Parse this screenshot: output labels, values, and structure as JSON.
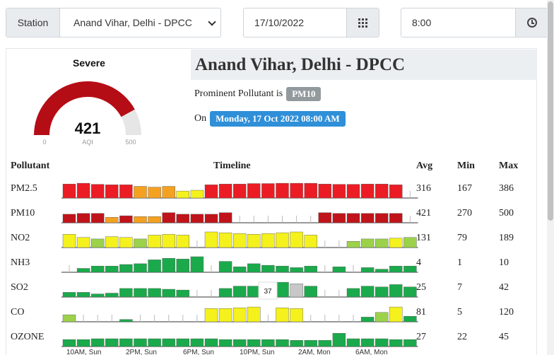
{
  "controls": {
    "station_label": "Station",
    "station_value": "Anand Vihar, Delhi - DPCC",
    "date_value": "17/10/2022",
    "time_value": "8:00"
  },
  "gauge": {
    "severity": "Severe",
    "aqi_value": "421",
    "aqi_label": "AQI",
    "min_label": "0",
    "max_label": "500",
    "aqi_number": 421,
    "aqi_max": 500,
    "color_fill": "#b50d16",
    "color_track": "#e6e6e6"
  },
  "header": {
    "title": "Anand Vihar, Delhi - DPCC",
    "prominent_text": "Prominent Pollutant is",
    "prominent_value": "PM10",
    "on_text": "On",
    "datetime": "Monday, 17 Oct 2022 08:00 AM"
  },
  "table": {
    "headers": {
      "pollutant": "Pollutant",
      "timeline": "Timeline",
      "avg": "Avg",
      "min": "Min",
      "max": "Max"
    },
    "tooltip_value": "37",
    "x_labels": [
      "10AM, Sun",
      "2PM, Sun",
      "6PM, Sun",
      "10PM, Sun",
      "2AM, Mon",
      "6AM, Mon"
    ],
    "rows": [
      {
        "name": "PM2.5",
        "avg": "316",
        "min": "167",
        "max": "386",
        "bars": [
          0.9,
          0.95,
          0.88,
          0.85,
          0.85,
          0.75,
          0.7,
          0.75,
          0.45,
          0.5,
          0.85,
          0.9,
          0.9,
          0.93,
          0.93,
          0.95,
          0.95,
          0.95,
          0.9,
          0.88,
          0.88,
          0.9,
          0.9,
          0.85,
          0.0
        ],
        "colors": [
          "r",
          "r",
          "r",
          "r",
          "r",
          "o",
          "o",
          "o",
          "y",
          "y",
          "r",
          "r",
          "r",
          "r",
          "r",
          "r",
          "r",
          "r",
          "r",
          "r",
          "r",
          "r",
          "r",
          "r",
          "n"
        ]
      },
      {
        "name": "PM10",
        "avg": "421",
        "min": "270",
        "max": "500",
        "bars": [
          0.55,
          0.6,
          0.6,
          0.35,
          0.45,
          0.4,
          0.4,
          0.65,
          0.55,
          0.55,
          0.55,
          0.65,
          0.0,
          0.0,
          0.0,
          0.0,
          0.0,
          0.0,
          0.65,
          0.6,
          0.6,
          0.6,
          0.6,
          0.6,
          0.0
        ],
        "colors": [
          "d",
          "d",
          "d",
          "o",
          "d",
          "o",
          "o",
          "d",
          "d",
          "d",
          "d",
          "d",
          "n",
          "n",
          "n",
          "n",
          "n",
          "n",
          "d",
          "d",
          "d",
          "d",
          "d",
          "d",
          "n"
        ]
      },
      {
        "name": "NO2",
        "avg": "131",
        "min": "79",
        "max": "189",
        "bars": [
          0.85,
          0.65,
          0.55,
          0.7,
          0.65,
          0.55,
          0.8,
          0.85,
          0.8,
          0.0,
          1.0,
          0.95,
          0.9,
          0.85,
          0.9,
          0.95,
          1.0,
          0.8,
          0.0,
          0.0,
          0.4,
          0.55,
          0.55,
          0.6,
          0.65
        ],
        "colors": [
          "y",
          "y",
          "l",
          "y",
          "y",
          "l",
          "y",
          "y",
          "y",
          "n",
          "y",
          "y",
          "y",
          "y",
          "y",
          "y",
          "y",
          "y",
          "n",
          "n",
          "l",
          "l",
          "l",
          "y",
          "l"
        ]
      },
      {
        "name": "NH3",
        "avg": "4",
        "min": "1",
        "max": "10",
        "bars": [
          0.0,
          0.25,
          0.4,
          0.4,
          0.5,
          0.55,
          0.8,
          0.9,
          0.85,
          1.0,
          0.0,
          0.7,
          0.35,
          0.55,
          0.45,
          0.4,
          0.3,
          0.4,
          0.0,
          0.35,
          0.0,
          0.3,
          0.2,
          0.4,
          0.4
        ],
        "colors": [
          "n",
          "g",
          "g",
          "g",
          "g",
          "g",
          "g",
          "g",
          "g",
          "g",
          "n",
          "g",
          "g",
          "g",
          "g",
          "g",
          "g",
          "g",
          "n",
          "g",
          "n",
          "g",
          "g",
          "g",
          "g"
        ]
      },
      {
        "name": "SO2",
        "avg": "25",
        "min": "7",
        "max": "42",
        "bars": [
          0.3,
          0.3,
          0.2,
          0.25,
          0.55,
          0.55,
          0.55,
          0.5,
          0.45,
          0.0,
          0.0,
          0.55,
          0.7,
          0.7,
          0.9,
          0.95,
          0.85,
          0.7,
          0.0,
          0.0,
          0.55,
          0.7,
          0.65,
          0.8,
          0.65
        ],
        "colors": [
          "g",
          "g",
          "g",
          "g",
          "g",
          "g",
          "g",
          "g",
          "g",
          "n",
          "n",
          "g",
          "g",
          "g",
          "g",
          "g",
          "x",
          "g",
          "n",
          "n",
          "g",
          "g",
          "g",
          "g",
          "g"
        ]
      },
      {
        "name": "CO",
        "avg": "81",
        "min": "5",
        "max": "120",
        "bars": [
          0.45,
          0.0,
          0.0,
          0.0,
          0.15,
          0.0,
          0.0,
          0.0,
          0.0,
          0.0,
          0.85,
          0.85,
          0.9,
          0.95,
          0.0,
          0.9,
          0.85,
          0.0,
          0.0,
          0.0,
          0.0,
          0.3,
          0.6,
          0.95,
          0.35
        ],
        "colors": [
          "l",
          "n",
          "n",
          "n",
          "g",
          "n",
          "n",
          "n",
          "n",
          "n",
          "y",
          "y",
          "y",
          "y",
          "n",
          "y",
          "y",
          "n",
          "n",
          "n",
          "n",
          "g",
          "l",
          "y",
          "g"
        ]
      },
      {
        "name": "OZONE",
        "avg": "27",
        "min": "22",
        "max": "45",
        "bars": [
          0.45,
          0.45,
          0.5,
          0.5,
          0.5,
          0.5,
          0.5,
          0.5,
          0.5,
          0.5,
          0.5,
          0.45,
          0.45,
          0.45,
          0.45,
          0.45,
          0.4,
          0.4,
          0.4,
          0.85,
          0.5,
          0.5,
          0.5,
          0.45,
          0.45
        ],
        "colors": [
          "g",
          "g",
          "g",
          "g",
          "g",
          "g",
          "g",
          "g",
          "g",
          "g",
          "g",
          "g",
          "g",
          "g",
          "g",
          "g",
          "g",
          "g",
          "g",
          "g",
          "g",
          "g",
          "g",
          "g",
          "g"
        ]
      }
    ],
    "color_map": {
      "r": "#ec1c24",
      "d": "#c1131a",
      "o": "#f4a121",
      "y": "#f4f11c",
      "l": "#9bd24a",
      "g": "#1aaa4b",
      "x": "#c7c7c7",
      "n": "none"
    }
  }
}
